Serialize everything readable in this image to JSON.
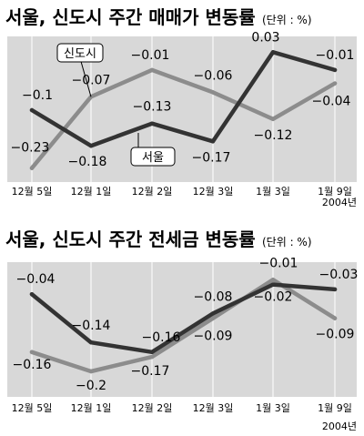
{
  "chart_data": [
    {
      "type": "line",
      "title": "서울, 신도시 주간 매매가 변동률",
      "unit_note": "(단위 : %)",
      "categories": [
        "12월 5일",
        "12월 1일",
        "12월 2일",
        "12월 3일",
        "1월 3일",
        "1월 9일"
      ],
      "year_note": "2004년",
      "series": [
        {
          "name": "서울",
          "color": "#333333",
          "values": [
            -0.1,
            -0.18,
            -0.13,
            -0.17,
            0.03,
            -0.01
          ],
          "labels": [
            "−0.1",
            "−0.18",
            "−0.13",
            "−0.17",
            "0.03",
            "−0.01"
          ]
        },
        {
          "name": "신도시",
          "color": "#8c8c8c",
          "values": [
            -0.23,
            -0.07,
            -0.01,
            -0.06,
            -0.12,
            -0.04
          ],
          "labels": [
            "−0.23",
            "−0.07",
            "−0.01",
            "−0.06",
            "−0.12",
            "−0.04"
          ]
        }
      ],
      "ylim": [
        -0.245,
        0.045
      ]
    },
    {
      "type": "line",
      "title": "서울, 신도시 주간 전세금 변동률",
      "unit_note": "(단위 : %)",
      "categories": [
        "12월 5일",
        "12월 1일",
        "12월 2일",
        "12월 3일",
        "1월 3일",
        "1월 9일"
      ],
      "year_note": "2004년",
      "series": [
        {
          "name": "서울",
          "color": "#333333",
          "values": [
            -0.04,
            -0.14,
            -0.16,
            -0.08,
            -0.02,
            -0.03
          ],
          "labels": [
            "−0.04",
            "−0.14",
            "−0.16",
            "−0.08",
            "−0.02",
            "−0.03"
          ]
        },
        {
          "name": "신도시",
          "color": "#8c8c8c",
          "values": [
            -0.16,
            -0.2,
            -0.17,
            -0.09,
            -0.01,
            -0.09
          ],
          "labels": [
            "−0.16",
            "−0.2",
            "−0.17",
            "−0.09",
            "−0.01",
            "−0.09"
          ]
        }
      ],
      "ylim": [
        -0.215,
        0.0
      ]
    }
  ]
}
